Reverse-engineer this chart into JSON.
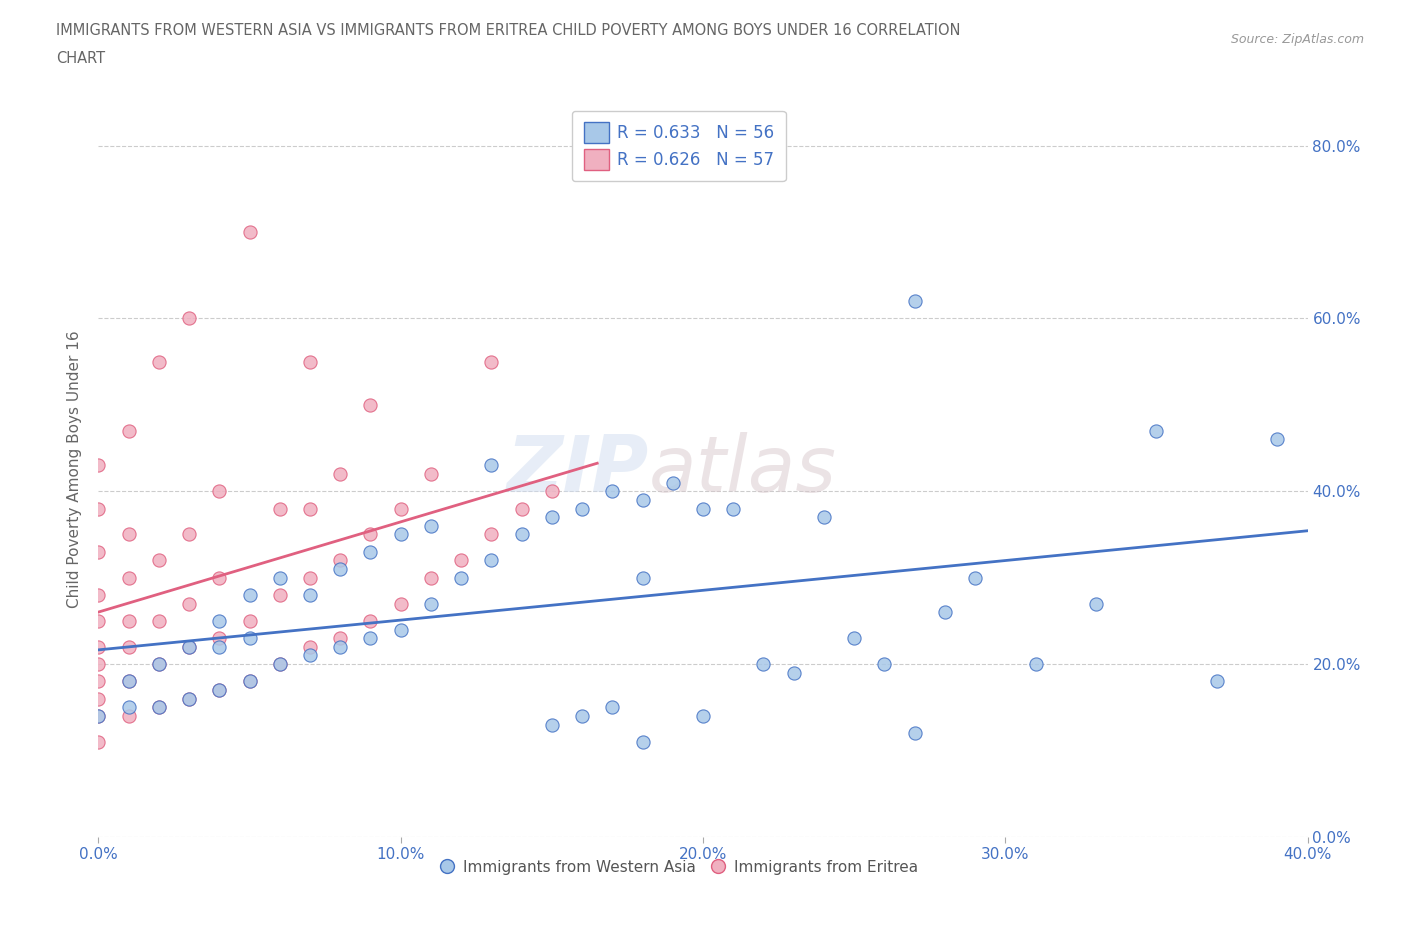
{
  "title_line1": "IMMIGRANTS FROM WESTERN ASIA VS IMMIGRANTS FROM ERITREA CHILD POVERTY AMONG BOYS UNDER 16 CORRELATION",
  "title_line2": "CHART",
  "source": "Source: ZipAtlas.com",
  "ylabel": "Child Poverty Among Boys Under 16",
  "ytick_labels": [
    "0.0%",
    "20.0%",
    "40.0%",
    "60.0%",
    "80.0%"
  ],
  "xtick_labels": [
    "0.0%",
    "10.0%",
    "20.0%",
    "30.0%",
    "40.0%"
  ],
  "xlim": [
    0.0,
    0.4
  ],
  "ylim": [
    0.0,
    0.85
  ],
  "watermark_zip": "ZIP",
  "watermark_atlas": "atlas",
  "color_western_asia": "#a8c8e8",
  "color_eritrea": "#f0b0c0",
  "line_color_western_asia": "#4472c4",
  "line_color_eritrea": "#e06080",
  "title_color": "#666666",
  "background_color": "#ffffff",
  "grid_color": "#cccccc",
  "western_asia_x": [
    0.0,
    0.01,
    0.01,
    0.02,
    0.02,
    0.03,
    0.03,
    0.04,
    0.04,
    0.04,
    0.05,
    0.05,
    0.05,
    0.06,
    0.06,
    0.07,
    0.07,
    0.08,
    0.08,
    0.09,
    0.09,
    0.1,
    0.1,
    0.11,
    0.11,
    0.12,
    0.13,
    0.13,
    0.14,
    0.15,
    0.15,
    0.16,
    0.16,
    0.17,
    0.17,
    0.18,
    0.18,
    0.18,
    0.19,
    0.2,
    0.2,
    0.21,
    0.22,
    0.23,
    0.24,
    0.25,
    0.26,
    0.27,
    0.27,
    0.28,
    0.29,
    0.31,
    0.33,
    0.35,
    0.37,
    0.39
  ],
  "western_asia_y": [
    0.14,
    0.15,
    0.18,
    0.15,
    0.2,
    0.16,
    0.22,
    0.17,
    0.22,
    0.25,
    0.18,
    0.23,
    0.28,
    0.2,
    0.3,
    0.21,
    0.28,
    0.22,
    0.31,
    0.23,
    0.33,
    0.24,
    0.35,
    0.27,
    0.36,
    0.3,
    0.32,
    0.43,
    0.35,
    0.13,
    0.37,
    0.14,
    0.38,
    0.15,
    0.4,
    0.11,
    0.3,
    0.39,
    0.41,
    0.14,
    0.38,
    0.38,
    0.2,
    0.19,
    0.37,
    0.23,
    0.2,
    0.12,
    0.62,
    0.26,
    0.3,
    0.2,
    0.27,
    0.47,
    0.18,
    0.46
  ],
  "eritrea_x": [
    0.0,
    0.0,
    0.0,
    0.0,
    0.0,
    0.0,
    0.0,
    0.0,
    0.0,
    0.0,
    0.0,
    0.01,
    0.01,
    0.01,
    0.01,
    0.01,
    0.01,
    0.01,
    0.02,
    0.02,
    0.02,
    0.02,
    0.02,
    0.03,
    0.03,
    0.03,
    0.03,
    0.03,
    0.04,
    0.04,
    0.04,
    0.04,
    0.05,
    0.05,
    0.05,
    0.06,
    0.06,
    0.06,
    0.07,
    0.07,
    0.07,
    0.07,
    0.08,
    0.08,
    0.08,
    0.09,
    0.09,
    0.09,
    0.1,
    0.1,
    0.11,
    0.11,
    0.12,
    0.13,
    0.13,
    0.14,
    0.15
  ],
  "eritrea_y": [
    0.11,
    0.14,
    0.16,
    0.18,
    0.2,
    0.22,
    0.25,
    0.28,
    0.33,
    0.38,
    0.43,
    0.14,
    0.18,
    0.22,
    0.25,
    0.3,
    0.35,
    0.47,
    0.15,
    0.2,
    0.25,
    0.32,
    0.55,
    0.16,
    0.22,
    0.27,
    0.35,
    0.6,
    0.17,
    0.23,
    0.3,
    0.4,
    0.18,
    0.25,
    0.7,
    0.2,
    0.28,
    0.38,
    0.22,
    0.3,
    0.38,
    0.55,
    0.23,
    0.32,
    0.42,
    0.25,
    0.35,
    0.5,
    0.27,
    0.38,
    0.3,
    0.42,
    0.32,
    0.35,
    0.55,
    0.38,
    0.4
  ],
  "legend_label1": "R = 0.633   N = 56",
  "legend_label2": "R = 0.626   N = 57",
  "bottom_label1": "Immigrants from Western Asia",
  "bottom_label2": "Immigrants from Eritrea"
}
